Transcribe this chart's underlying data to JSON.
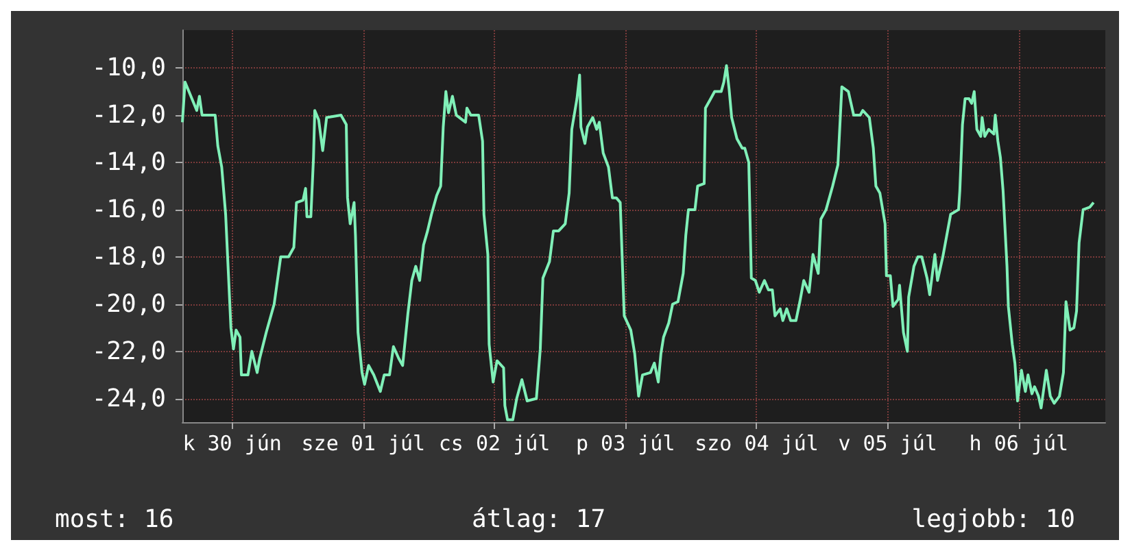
{
  "chart_data": {
    "type": "line",
    "x": [
      "--06-29T22:05",
      "--06-29T22:34",
      "--06-29T23:17",
      "--06-30T00:43",
      "--06-30T01:12",
      "--06-30T01:41",
      "--06-30T04:05",
      "--06-30T04:34",
      "--06-30T05:17",
      "--06-30T06:00",
      "--06-30T06:29",
      "--06-30T06:58",
      "--06-30T07:26",
      "--06-30T07:55",
      "--06-30T08:38",
      "--06-30T08:53",
      "--06-30T10:05",
      "--06-30T10:48",
      "--06-30T11:46",
      "--06-30T12:14",
      "--06-30T13:26",
      "--06-30T14:53",
      "--06-30T16:05",
      "--06-30T17:31",
      "--06-30T18:29",
      "--06-30T18:58",
      "--06-30T20:10",
      "--06-30T20:38",
      "--06-30T20:53",
      "--06-30T21:36",
      "--06-30T22:05",
      "--06-30T22:19",
      "--06-30T23:02",
      "--06-30T23:46",
      "--07-01T00:29",
      "--07-01T03:07",
      "--07-01T04:05",
      "--07-01T04:19",
      "--07-01T04:48",
      "--07-01T05:31",
      "--07-01T05:46",
      "--07-01T06:14",
      "--07-01T06:58",
      "--07-01T07:26",
      "--07-01T08:10",
      "--07-01T09:07",
      "--07-01T10:19",
      "--07-01T11:02",
      "--07-01T12:00",
      "--07-01T12:43",
      "--07-01T13:41",
      "--07-01T14:24",
      "--07-01T15:22",
      "--07-01T16:05",
      "--07-01T16:48",
      "--07-01T17:31",
      "--07-01T18:14",
      "--07-01T18:58",
      "--07-01T19:41",
      "--07-01T20:38",
      "--07-01T21:22",
      "--07-01T21:50",
      "--07-01T22:19",
      "--07-01T22:48",
      "--07-01T23:31",
      "--07-02T00:14",
      "--07-02T01:55",
      "--07-02T02:10",
      "--07-02T02:53",
      "--07-02T04:19",
      "--07-02T05:02",
      "--07-02T05:17",
      "--07-02T06:00",
      "--07-02T06:14",
      "--07-02T06:58",
      "--07-02T07:41",
      "--07-02T08:53",
      "--07-02T09:07",
      "--07-02T09:36",
      "--07-02T10:34",
      "--07-02T11:17",
      "--07-02T12:14",
      "--07-02T13:12",
      "--07-02T14:53",
      "--07-02T15:36",
      "--07-02T16:05",
      "--07-02T17:17",
      "--07-02T18:00",
      "--07-02T18:58",
      "--07-02T20:10",
      "--07-02T20:53",
      "--07-02T21:22",
      "--07-02T22:19",
      "--07-02T22:48",
      "--07-02T23:02",
      "--07-02T23:46",
      "--07-03T00:14",
      "--07-03T01:12",
      "--07-03T01:55",
      "--07-03T02:24",
      "--07-03T03:07",
      "--07-03T04:05",
      "--07-03T04:48",
      "--07-03T05:31",
      "--07-03T06:14",
      "--07-03T06:58",
      "--07-03T08:10",
      "--07-03T08:53",
      "--07-03T09:36",
      "--07-03T10:19",
      "--07-03T11:46",
      "--07-03T12:29",
      "--07-03T13:12",
      "--07-03T13:41",
      "--07-03T14:10",
      "--07-03T15:07",
      "--07-03T15:50",
      "--07-03T16:48",
      "--07-03T17:46",
      "--07-03T18:14",
      "--07-03T18:43",
      "--07-03T19:55",
      "--07-03T20:24",
      "--07-03T21:36",
      "--07-03T21:50",
      "--07-03T22:48",
      "--07-03T23:31",
      "--07-04T00:43",
      "--07-04T01:12",
      "--07-04T01:41",
      "--07-04T02:10",
      "--07-04T02:38",
      "--07-04T03:36",
      "--07-04T04:34",
      "--07-04T05:02",
      "--07-04T05:46",
      "--07-04T06:14",
      "--07-04T06:58",
      "--07-04T07:41",
      "--07-04T08:38",
      "--07-04T09:22",
      "--07-04T10:05",
      "--07-04T10:34",
      "--07-04T11:31",
      "--07-04T12:00",
      "--07-04T12:43",
      "--07-04T13:26",
      "--07-04T14:24",
      "--07-04T15:07",
      "--07-04T15:50",
      "--07-04T16:48",
      "--07-04T17:31",
      "--07-04T18:29",
      "--07-04T18:58",
      "--07-04T19:55",
      "--07-04T21:07",
      "--07-04T22:05",
      "--07-04T22:48",
      "--07-05T00:00",
      "--07-05T00:58",
      "--07-05T02:10",
      "--07-05T02:38",
      "--07-05T03:50",
      "--07-05T04:34",
      "--07-05T05:02",
      "--07-05T05:46",
      "--07-05T06:43",
      "--07-05T06:58",
      "--07-05T07:41",
      "--07-05T08:10",
      "--07-05T09:07",
      "--07-05T09:22",
      "--07-05T10:05",
      "--07-05T10:48",
      "--07-05T11:02",
      "--07-05T12:00",
      "--07-05T12:43",
      "--07-05T13:26",
      "--07-05T14:24",
      "--07-05T14:53",
      "--07-05T15:50",
      "--07-05T16:19",
      "--07-05T17:17",
      "--07-05T18:00",
      "--07-05T18:43",
      "--07-05T20:10",
      "--07-05T20:24",
      "--07-05T20:53",
      "--07-05T21:22",
      "--07-05T22:05",
      "--07-05T22:34",
      "--07-05T23:02",
      "--07-05T23:31",
      "--07-06T00:14",
      "--07-06T00:29",
      "--07-06T00:58",
      "--07-06T01:41",
      "--07-06T02:38",
      "--07-06T02:53",
      "--07-06T03:22",
      "--07-06T03:50",
      "--07-06T04:19",
      "--07-06T05:02",
      "--07-06T05:17",
      "--07-06T06:00",
      "--07-06T06:29",
      "--07-06T06:58",
      "--07-06T07:41",
      "--07-06T08:24",
      "--07-06T08:53",
      "--07-06T09:36",
      "--07-06T10:05",
      "--07-06T10:48",
      "--07-06T11:17",
      "--07-06T12:14",
      "--07-06T12:58",
      "--07-06T13:41",
      "--07-06T14:38",
      "--07-06T15:22",
      "--07-06T15:50",
      "--07-06T16:34",
      "--07-06T17:17",
      "--07-06T17:46",
      "--07-06T18:14",
      "--07-06T18:58",
      "--07-06T20:10",
      "--07-06T20:53"
    ],
    "series": [
      {
        "color": "#80f0b8",
        "values": [
          -12.3,
          -10.6,
          -11.0,
          -11.8,
          -11.2,
          -12.0,
          -12.0,
          -13.3,
          -14.2,
          -16.2,
          -18.6,
          -21.0,
          -21.9,
          -21.1,
          -21.4,
          -23.0,
          -23.0,
          -22.0,
          -22.9,
          -22.3,
          -21.2,
          -20.0,
          -18.0,
          -18.0,
          -17.6,
          -15.7,
          -15.6,
          -15.1,
          -16.3,
          -16.3,
          -13.8,
          -11.8,
          -12.2,
          -13.5,
          -12.1,
          -12.0,
          -12.4,
          -15.5,
          -16.6,
          -15.7,
          -17.1,
          -21.2,
          -22.9,
          -23.4,
          -22.6,
          -23.0,
          -23.7,
          -23.0,
          -23.0,
          -21.8,
          -22.3,
          -22.6,
          -20.4,
          -19.0,
          -18.4,
          -19.0,
          -17.5,
          -16.9,
          -16.2,
          -15.4,
          -15.0,
          -12.5,
          -11.0,
          -11.9,
          -11.2,
          -12.0,
          -12.3,
          -11.7,
          -12.0,
          -12.0,
          -13.1,
          -16.2,
          -17.9,
          -21.7,
          -23.3,
          -22.4,
          -22.7,
          -24.3,
          -24.9,
          -24.9,
          -24.0,
          -23.2,
          -24.1,
          -24.0,
          -21.9,
          -18.9,
          -18.2,
          -16.9,
          -16.9,
          -16.6,
          -15.3,
          -12.6,
          -11.3,
          -10.3,
          -12.5,
          -13.2,
          -12.5,
          -12.1,
          -12.6,
          -12.3,
          -13.6,
          -14.2,
          -15.5,
          -15.5,
          -15.7,
          -20.5,
          -21.1,
          -22.1,
          -23.9,
          -23.0,
          -22.9,
          -22.5,
          -23.3,
          -22.1,
          -21.4,
          -20.8,
          -20.0,
          -19.9,
          -18.7,
          -17.1,
          -16.0,
          -16.0,
          -15.0,
          -14.9,
          -11.7,
          -11.3,
          -11.0,
          -11.0,
          -10.6,
          -9.9,
          -10.9,
          -12.1,
          -13.0,
          -13.4,
          -13.4,
          -14.0,
          -18.9,
          -19.0,
          -19.5,
          -19.0,
          -19.4,
          -19.4,
          -20.5,
          -20.2,
          -20.7,
          -20.2,
          -20.7,
          -20.7,
          -19.9,
          -19.0,
          -19.5,
          -17.9,
          -18.7,
          -16.4,
          -16.0,
          -15.0,
          -14.1,
          -10.8,
          -11.0,
          -12.0,
          -12.0,
          -11.8,
          -12.1,
          -13.4,
          -15.0,
          -15.3,
          -16.6,
          -18.8,
          -18.8,
          -20.1,
          -19.8,
          -19.2,
          -21.2,
          -22.0,
          -19.7,
          -18.4,
          -18.0,
          -18.0,
          -18.9,
          -19.6,
          -17.9,
          -19.0,
          -18.0,
          -17.1,
          -16.2,
          -16.0,
          -15.2,
          -12.4,
          -11.3,
          -11.3,
          -11.5,
          -11.0,
          -12.6,
          -12.9,
          -12.1,
          -12.9,
          -12.6,
          -12.8,
          -12.0,
          -13.1,
          -13.8,
          -15.2,
          -18.4,
          -20.1,
          -21.7,
          -22.5,
          -24.1,
          -22.8,
          -23.7,
          -23.0,
          -23.8,
          -23.5,
          -23.9,
          -24.4,
          -22.8,
          -23.9,
          -24.2,
          -23.9,
          -22.9,
          -19.9,
          -21.1,
          -21.0,
          -20.3,
          -17.4,
          -16.0,
          -15.9,
          -15.7
        ]
      }
    ],
    "xlim": [
      "--06-29T22:05",
      "--07-06T23:02"
    ],
    "xticks": [
      {
        "value": "--06-30T07:12",
        "label": "k 30 jún"
      },
      {
        "value": "--07-01T07:12",
        "label": "sze 01 júl"
      },
      {
        "value": "--07-02T07:12",
        "label": "cs 02 júl"
      },
      {
        "value": "--07-03T07:12",
        "label": "p 03 júl"
      },
      {
        "value": "--07-04T07:12",
        "label": "szo 04 júl"
      },
      {
        "value": "--07-05T07:12",
        "label": "v 05 júl"
      },
      {
        "value": "--07-06T07:12",
        "label": "h 06 júl"
      }
    ],
    "ylim": [
      -25,
      -8.4
    ],
    "yticks": [
      {
        "value": -24,
        "label": "-24,0"
      },
      {
        "value": -22,
        "label": "-22,0"
      },
      {
        "value": -20,
        "label": "-20,0"
      },
      {
        "value": -18,
        "label": "-18,0"
      },
      {
        "value": -16,
        "label": "-16,0"
      },
      {
        "value": -14,
        "label": "-14,0"
      },
      {
        "value": -12,
        "label": "-12,0"
      },
      {
        "value": -10,
        "label": "-10,0"
      }
    ],
    "grid": true,
    "annotations": [
      "most: 16",
      "átlag: 17",
      "legjobb: 10"
    ]
  }
}
